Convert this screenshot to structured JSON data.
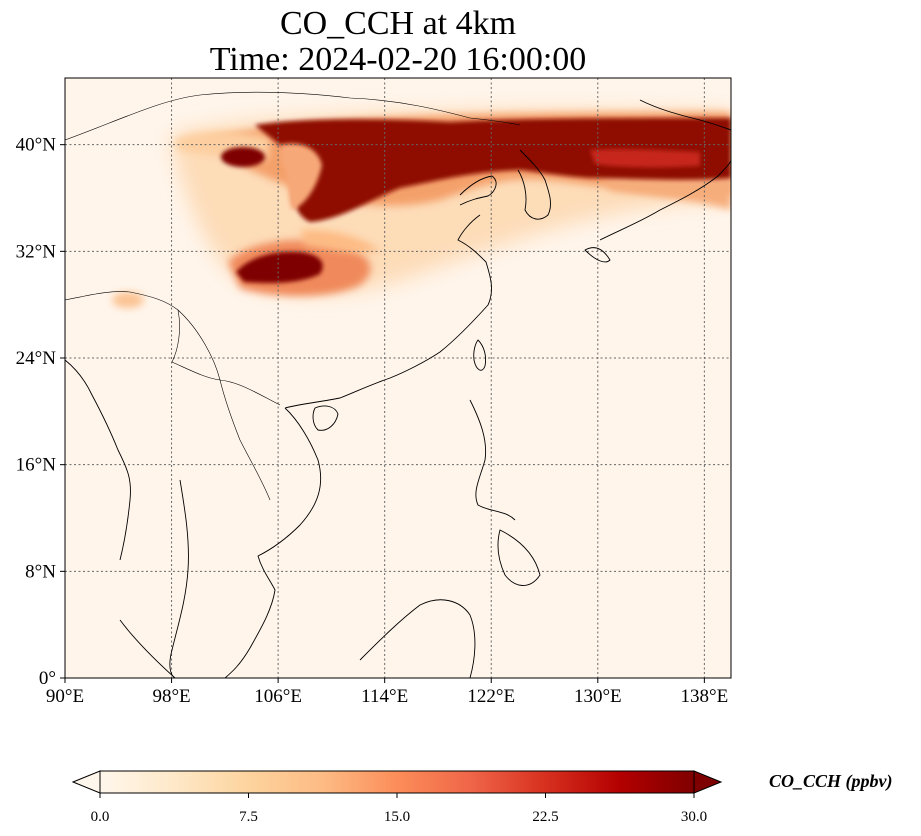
{
  "title_line1": "CO_CCH at 4km",
  "title_line2": "Time: 2024-02-20 16:00:00",
  "map": {
    "lon_range": [
      90,
      140
    ],
    "lat_range": [
      0,
      45
    ],
    "lon_ticks": [
      {
        "value": 90,
        "label": "90°E"
      },
      {
        "value": 98,
        "label": "98°E"
      },
      {
        "value": 106,
        "label": "106°E"
      },
      {
        "value": 114,
        "label": "114°E"
      },
      {
        "value": 122,
        "label": "122°E"
      },
      {
        "value": 130,
        "label": "130°E"
      },
      {
        "value": 138,
        "label": "138°E"
      }
    ],
    "lat_ticks": [
      {
        "value": 0,
        "label": "0°"
      },
      {
        "value": 8,
        "label": "8°N"
      },
      {
        "value": 16,
        "label": "16°N"
      },
      {
        "value": 24,
        "label": "24°N"
      },
      {
        "value": 32,
        "label": "32°N"
      },
      {
        "value": 40,
        "label": "40°N"
      }
    ],
    "gridlines": true,
    "background_color": "#fff5eb"
  },
  "colorbar": {
    "title": "CO_CCH (ppbv)",
    "min": 0,
    "max": 30,
    "extend": "both",
    "colormap": "OrRd",
    "colors": [
      "#fff7ec",
      "#fee8c8",
      "#fdd49e",
      "#fdbb84",
      "#fc8d59",
      "#ef6548",
      "#d7301f",
      "#b30000",
      "#7f0000"
    ],
    "ticks": [
      {
        "value": 0,
        "label": "0.0"
      },
      {
        "value": 7.5,
        "label": "7.5"
      },
      {
        "value": 15,
        "label": "15.0"
      },
      {
        "value": 22.5,
        "label": "22.5"
      },
      {
        "value": 30,
        "label": "30.0"
      }
    ]
  },
  "plumes": [
    {
      "id": "northern-band",
      "lon": [
        104,
        140
      ],
      "lat": [
        37,
        42
      ],
      "peak_value": 30
    },
    {
      "id": "inner-china-core",
      "lon": [
        107,
        114
      ],
      "lat": [
        35,
        40
      ],
      "peak_value": 30
    },
    {
      "id": "sichuan-core",
      "lon": [
        104,
        110
      ],
      "lat": [
        30,
        33
      ],
      "peak_value": 30
    },
    {
      "id": "western-streak",
      "lon": [
        98,
        106
      ],
      "lat": [
        38,
        41
      ],
      "peak_value": 16
    },
    {
      "id": "japan-tail",
      "lon": [
        128,
        140
      ],
      "lat": [
        34,
        40
      ],
      "peak_value": 12
    },
    {
      "id": "tibet-patch",
      "lon": [
        94,
        97
      ],
      "lat": [
        27,
        29
      ],
      "peak_value": 8
    }
  ]
}
